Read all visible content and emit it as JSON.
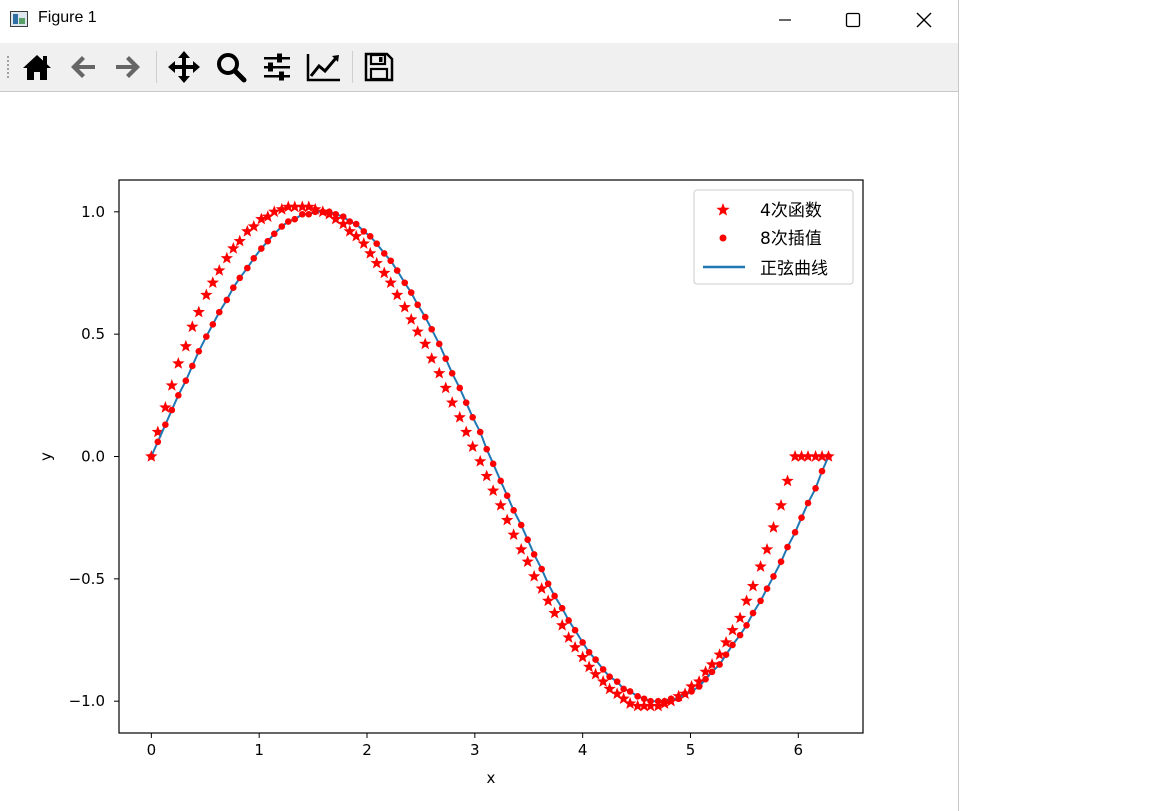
{
  "window": {
    "title": "Figure 1",
    "icon": "matplotlib-figure-icon"
  },
  "toolbar": {
    "buttons": [
      {
        "name": "home-button",
        "icon": "home-icon"
      },
      {
        "name": "back-button",
        "icon": "arrow-left-icon"
      },
      {
        "name": "forward-button",
        "icon": "arrow-right-icon"
      },
      {
        "name": "pan-button",
        "icon": "move-arrows-icon"
      },
      {
        "name": "zoom-button",
        "icon": "magnifier-icon"
      },
      {
        "name": "configure-subplots-button",
        "icon": "sliders-icon"
      },
      {
        "name": "edit-axis-button",
        "icon": "line-chart-icon"
      },
      {
        "name": "save-button",
        "icon": "floppy-disk-icon"
      }
    ]
  },
  "colors": {
    "marker": "#ff0000",
    "line": "#1f77b4",
    "axes": "#000000"
  },
  "chart_data": {
    "type": "scatter",
    "title": "",
    "xlabel": "x",
    "ylabel": "y",
    "xlim": [
      -0.3,
      6.6
    ],
    "ylim": [
      -1.13,
      1.13
    ],
    "xticks": [
      0,
      1,
      2,
      3,
      4,
      5,
      6
    ],
    "xtick_labels": [
      "0",
      "1",
      "2",
      "3",
      "4",
      "5",
      "6"
    ],
    "yticks": [
      1.0,
      0.5,
      0.0,
      -0.5,
      -1.0
    ],
    "ytick_labels": [
      "1.0",
      "0.5",
      "0.0",
      "−0.5",
      "−1.0"
    ],
    "legend_position": "top-right",
    "legend": [
      "4次函数",
      "8次插值",
      "正弦曲线"
    ],
    "series": [
      {
        "name": "4次函数",
        "marker": "star",
        "color": "#ff0000",
        "x": [
          0.0,
          0.06,
          0.13,
          0.19,
          0.25,
          0.32,
          0.38,
          0.44,
          0.51,
          0.57,
          0.63,
          0.7,
          0.76,
          0.82,
          0.89,
          0.95,
          1.02,
          1.08,
          1.14,
          1.21,
          1.27,
          1.33,
          1.4,
          1.46,
          1.52,
          1.59,
          1.65,
          1.71,
          1.78,
          1.84,
          1.9,
          1.97,
          2.03,
          2.09,
          2.16,
          2.22,
          2.28,
          2.35,
          2.41,
          2.47,
          2.54,
          2.6,
          2.67,
          2.73,
          2.79,
          2.86,
          2.92,
          2.98,
          3.05,
          3.11,
          3.17,
          3.24,
          3.3,
          3.36,
          3.43,
          3.49,
          3.55,
          3.62,
          3.68,
          3.74,
          3.81,
          3.87,
          3.93,
          4.0,
          4.06,
          4.12,
          4.19,
          4.25,
          4.32,
          4.38,
          4.44,
          4.51,
          4.57,
          4.63,
          4.7,
          4.76,
          4.82,
          4.89,
          4.95,
          5.01,
          5.08,
          5.14,
          5.2,
          5.27,
          5.33,
          5.39,
          5.46,
          5.52,
          5.58,
          5.65,
          5.71,
          5.77,
          5.84,
          5.9,
          5.97,
          6.03,
          6.09,
          6.16,
          6.22,
          6.28
        ],
        "y": [
          0.0,
          0.1,
          0.2,
          0.29,
          0.38,
          0.45,
          0.53,
          0.59,
          0.66,
          0.71,
          0.76,
          0.81,
          0.85,
          0.88,
          0.92,
          0.94,
          0.97,
          0.98,
          1.0,
          1.01,
          1.02,
          1.02,
          1.02,
          1.02,
          1.01,
          1.0,
          0.99,
          0.97,
          0.95,
          0.92,
          0.9,
          0.87,
          0.83,
          0.79,
          0.75,
          0.71,
          0.66,
          0.61,
          0.56,
          0.51,
          0.46,
          0.4,
          0.34,
          0.28,
          0.22,
          0.16,
          0.1,
          0.04,
          -0.02,
          -0.08,
          -0.14,
          -0.2,
          -0.26,
          -0.32,
          -0.38,
          -0.43,
          -0.49,
          -0.54,
          -0.59,
          -0.64,
          -0.69,
          -0.74,
          -0.78,
          -0.82,
          -0.86,
          -0.89,
          -0.92,
          -0.95,
          -0.97,
          -0.99,
          -1.01,
          -1.02,
          -1.02,
          -1.02,
          -1.02,
          -1.01,
          -1.0,
          -0.98,
          -0.97,
          -0.94,
          -0.92,
          -0.88,
          -0.85,
          -0.81,
          -0.76,
          -0.71,
          -0.66,
          -0.59,
          -0.53,
          -0.45,
          -0.38,
          -0.29,
          -0.2,
          -0.1,
          0.0,
          0.0,
          0.0,
          0.0,
          0.0,
          0.0
        ]
      },
      {
        "name": "8次插值",
        "marker": "circle",
        "color": "#ff0000",
        "x": [
          0.0,
          0.06,
          0.13,
          0.19,
          0.25,
          0.32,
          0.38,
          0.44,
          0.51,
          0.57,
          0.63,
          0.7,
          0.76,
          0.82,
          0.89,
          0.95,
          1.02,
          1.08,
          1.14,
          1.21,
          1.27,
          1.33,
          1.4,
          1.46,
          1.52,
          1.59,
          1.65,
          1.71,
          1.78,
          1.84,
          1.9,
          1.97,
          2.03,
          2.09,
          2.16,
          2.22,
          2.28,
          2.35,
          2.41,
          2.47,
          2.54,
          2.6,
          2.67,
          2.73,
          2.79,
          2.86,
          2.92,
          2.98,
          3.05,
          3.11,
          3.17,
          3.24,
          3.3,
          3.36,
          3.43,
          3.49,
          3.55,
          3.62,
          3.68,
          3.74,
          3.81,
          3.87,
          3.93,
          4.0,
          4.06,
          4.12,
          4.19,
          4.25,
          4.32,
          4.38,
          4.44,
          4.51,
          4.57,
          4.63,
          4.7,
          4.76,
          4.82,
          4.89,
          4.95,
          5.01,
          5.08,
          5.14,
          5.2,
          5.27,
          5.33,
          5.39,
          5.46,
          5.52,
          5.58,
          5.65,
          5.71,
          5.77,
          5.84,
          5.9,
          5.97,
          6.03,
          6.09,
          6.16,
          6.22,
          6.28
        ],
        "y": [
          0.0,
          0.06,
          0.13,
          0.19,
          0.25,
          0.31,
          0.37,
          0.43,
          0.49,
          0.54,
          0.59,
          0.64,
          0.69,
          0.73,
          0.77,
          0.81,
          0.85,
          0.88,
          0.91,
          0.94,
          0.96,
          0.97,
          0.99,
          0.99,
          1.0,
          1.0,
          1.0,
          0.99,
          0.98,
          0.96,
          0.95,
          0.92,
          0.9,
          0.87,
          0.83,
          0.8,
          0.76,
          0.71,
          0.67,
          0.62,
          0.57,
          0.52,
          0.46,
          0.4,
          0.34,
          0.28,
          0.22,
          0.16,
          0.1,
          0.03,
          -0.03,
          -0.1,
          -0.16,
          -0.22,
          -0.28,
          -0.34,
          -0.4,
          -0.46,
          -0.52,
          -0.57,
          -0.62,
          -0.67,
          -0.71,
          -0.76,
          -0.8,
          -0.83,
          -0.87,
          -0.9,
          -0.92,
          -0.95,
          -0.96,
          -0.98,
          -0.99,
          -1.0,
          -1.0,
          -1.0,
          -0.99,
          -0.99,
          -0.97,
          -0.96,
          -0.94,
          -0.91,
          -0.88,
          -0.85,
          -0.81,
          -0.77,
          -0.73,
          -0.69,
          -0.64,
          -0.59,
          -0.54,
          -0.49,
          -0.43,
          -0.37,
          -0.31,
          -0.25,
          -0.19,
          -0.13,
          -0.06,
          0.0
        ]
      },
      {
        "name": "正弦曲线",
        "marker": "line",
        "color": "#1f77b4",
        "x": [
          0.0,
          0.06,
          0.13,
          0.19,
          0.25,
          0.32,
          0.38,
          0.44,
          0.51,
          0.57,
          0.63,
          0.7,
          0.76,
          0.82,
          0.89,
          0.95,
          1.02,
          1.08,
          1.14,
          1.21,
          1.27,
          1.33,
          1.4,
          1.46,
          1.52,
          1.59,
          1.65,
          1.71,
          1.78,
          1.84,
          1.9,
          1.97,
          2.03,
          2.09,
          2.16,
          2.22,
          2.28,
          2.35,
          2.41,
          2.47,
          2.54,
          2.6,
          2.67,
          2.73,
          2.79,
          2.86,
          2.92,
          2.98,
          3.05,
          3.11,
          3.17,
          3.24,
          3.3,
          3.36,
          3.43,
          3.49,
          3.55,
          3.62,
          3.68,
          3.74,
          3.81,
          3.87,
          3.93,
          4.0,
          4.06,
          4.12,
          4.19,
          4.25,
          4.32,
          4.38,
          4.44,
          4.51,
          4.57,
          4.63,
          4.7,
          4.76,
          4.82,
          4.89,
          4.95,
          5.01,
          5.08,
          5.14,
          5.2,
          5.27,
          5.33,
          5.39,
          5.46,
          5.52,
          5.58,
          5.65,
          5.71,
          5.77,
          5.84,
          5.9,
          5.97,
          6.03,
          6.09,
          6.16,
          6.22,
          6.28
        ],
        "y": [
          0.0,
          0.06,
          0.13,
          0.19,
          0.25,
          0.31,
          0.37,
          0.43,
          0.49,
          0.54,
          0.59,
          0.64,
          0.69,
          0.73,
          0.77,
          0.81,
          0.85,
          0.88,
          0.91,
          0.94,
          0.96,
          0.97,
          0.99,
          0.99,
          1.0,
          1.0,
          1.0,
          0.99,
          0.98,
          0.96,
          0.95,
          0.92,
          0.9,
          0.87,
          0.83,
          0.8,
          0.76,
          0.71,
          0.67,
          0.62,
          0.57,
          0.52,
          0.46,
          0.4,
          0.34,
          0.28,
          0.22,
          0.16,
          0.1,
          0.03,
          -0.03,
          -0.1,
          -0.16,
          -0.22,
          -0.28,
          -0.34,
          -0.4,
          -0.46,
          -0.52,
          -0.57,
          -0.62,
          -0.67,
          -0.71,
          -0.76,
          -0.8,
          -0.83,
          -0.87,
          -0.9,
          -0.92,
          -0.95,
          -0.96,
          -0.98,
          -0.99,
          -1.0,
          -1.0,
          -1.0,
          -0.99,
          -0.99,
          -0.97,
          -0.96,
          -0.94,
          -0.91,
          -0.88,
          -0.85,
          -0.81,
          -0.77,
          -0.73,
          -0.69,
          -0.64,
          -0.59,
          -0.54,
          -0.49,
          -0.43,
          -0.37,
          -0.31,
          -0.25,
          -0.19,
          -0.13,
          -0.06,
          0.0
        ]
      }
    ]
  }
}
